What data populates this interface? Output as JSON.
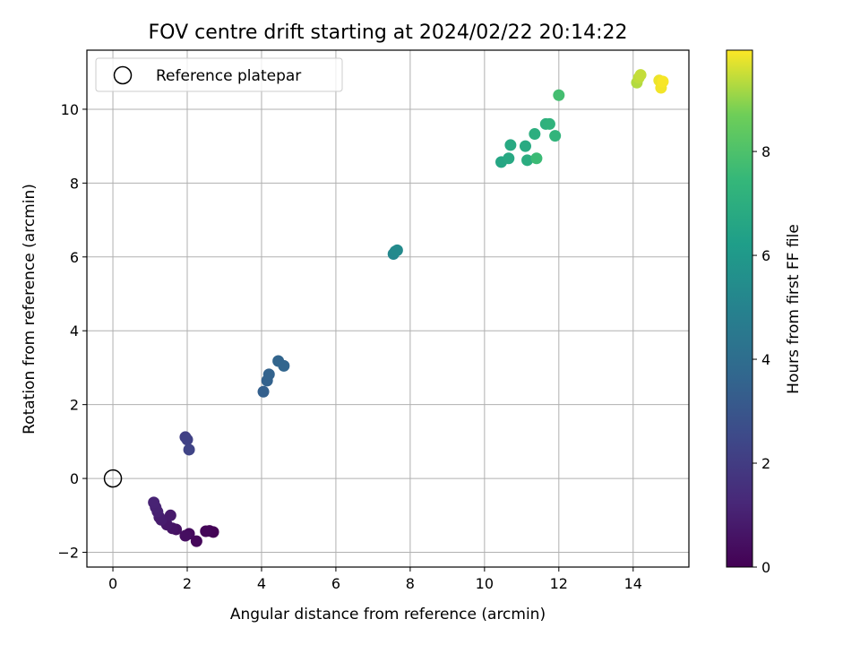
{
  "chart_data": {
    "type": "scatter",
    "title": "FOV centre drift starting at 2024/02/22 20:14:22",
    "xlabel": "Angular distance from reference (arcmin)",
    "ylabel": "Rotation from reference (arcmin)",
    "xlim": [
      -0.7,
      15.5
    ],
    "ylim": [
      -2.4,
      11.6
    ],
    "xticks": [
      0,
      2,
      4,
      6,
      8,
      10,
      12,
      14
    ],
    "yticks": [
      -2,
      0,
      2,
      4,
      6,
      8,
      10
    ],
    "grid": true,
    "legend": {
      "placement": "top-left",
      "entries": [
        "Reference platepar"
      ]
    },
    "reference_point": {
      "x": 0,
      "y": 0
    },
    "colorbar": {
      "label": "Hours from first FF file",
      "min": 0,
      "max": 9.95,
      "ticks": [
        0,
        2,
        4,
        6,
        8
      ],
      "colormap": "viridis"
    },
    "points": [
      {
        "x": 2.7,
        "y": -1.45,
        "hours": 0.05
      },
      {
        "x": 2.6,
        "y": -1.42,
        "hours": 0.1
      },
      {
        "x": 2.5,
        "y": -1.43,
        "hours": 0.15
      },
      {
        "x": 2.25,
        "y": -1.7,
        "hours": 0.2
      },
      {
        "x": 2.05,
        "y": -1.5,
        "hours": 0.3
      },
      {
        "x": 1.95,
        "y": -1.55,
        "hours": 0.4
      },
      {
        "x": 1.7,
        "y": -1.38,
        "hours": 0.5
      },
      {
        "x": 1.6,
        "y": -1.35,
        "hours": 0.6
      },
      {
        "x": 1.45,
        "y": -1.25,
        "hours": 0.7
      },
      {
        "x": 1.55,
        "y": -1.0,
        "hours": 0.8
      },
      {
        "x": 1.3,
        "y": -1.12,
        "hours": 0.85
      },
      {
        "x": 1.25,
        "y": -1.05,
        "hours": 0.9
      },
      {
        "x": 1.2,
        "y": -0.9,
        "hours": 1.0
      },
      {
        "x": 1.15,
        "y": -0.78,
        "hours": 1.05
      },
      {
        "x": 1.1,
        "y": -0.65,
        "hours": 1.1
      },
      {
        "x": 1.95,
        "y": 1.12,
        "hours": 2.1
      },
      {
        "x": 2.0,
        "y": 1.05,
        "hours": 2.2
      },
      {
        "x": 2.05,
        "y": 0.78,
        "hours": 2.3
      },
      {
        "x": 4.05,
        "y": 2.35,
        "hours": 3.4
      },
      {
        "x": 4.15,
        "y": 2.65,
        "hours": 3.5
      },
      {
        "x": 4.2,
        "y": 2.82,
        "hours": 3.55
      },
      {
        "x": 4.45,
        "y": 3.18,
        "hours": 3.6
      },
      {
        "x": 4.6,
        "y": 3.05,
        "hours": 3.65
      },
      {
        "x": 7.55,
        "y": 6.08,
        "hours": 5.2
      },
      {
        "x": 7.6,
        "y": 6.15,
        "hours": 5.3
      },
      {
        "x": 7.65,
        "y": 6.18,
        "hours": 5.35
      },
      {
        "x": 10.45,
        "y": 8.57,
        "hours": 6.6
      },
      {
        "x": 10.65,
        "y": 8.67,
        "hours": 6.7
      },
      {
        "x": 10.7,
        "y": 9.03,
        "hours": 6.75
      },
      {
        "x": 11.1,
        "y": 9.0,
        "hours": 6.8
      },
      {
        "x": 11.15,
        "y": 8.62,
        "hours": 6.9
      },
      {
        "x": 11.35,
        "y": 9.33,
        "hours": 7.0
      },
      {
        "x": 11.4,
        "y": 8.67,
        "hours": 7.6
      },
      {
        "x": 11.65,
        "y": 9.6,
        "hours": 7.1
      },
      {
        "x": 11.75,
        "y": 9.6,
        "hours": 7.2
      },
      {
        "x": 11.9,
        "y": 9.28,
        "hours": 7.3
      },
      {
        "x": 12.0,
        "y": 10.38,
        "hours": 7.8
      },
      {
        "x": 14.1,
        "y": 10.72,
        "hours": 9.3
      },
      {
        "x": 14.15,
        "y": 10.85,
        "hours": 9.4
      },
      {
        "x": 14.2,
        "y": 10.93,
        "hours": 9.45
      },
      {
        "x": 14.7,
        "y": 10.78,
        "hours": 9.8
      },
      {
        "x": 14.75,
        "y": 10.58,
        "hours": 9.85
      },
      {
        "x": 14.8,
        "y": 10.75,
        "hours": 9.9
      }
    ]
  }
}
